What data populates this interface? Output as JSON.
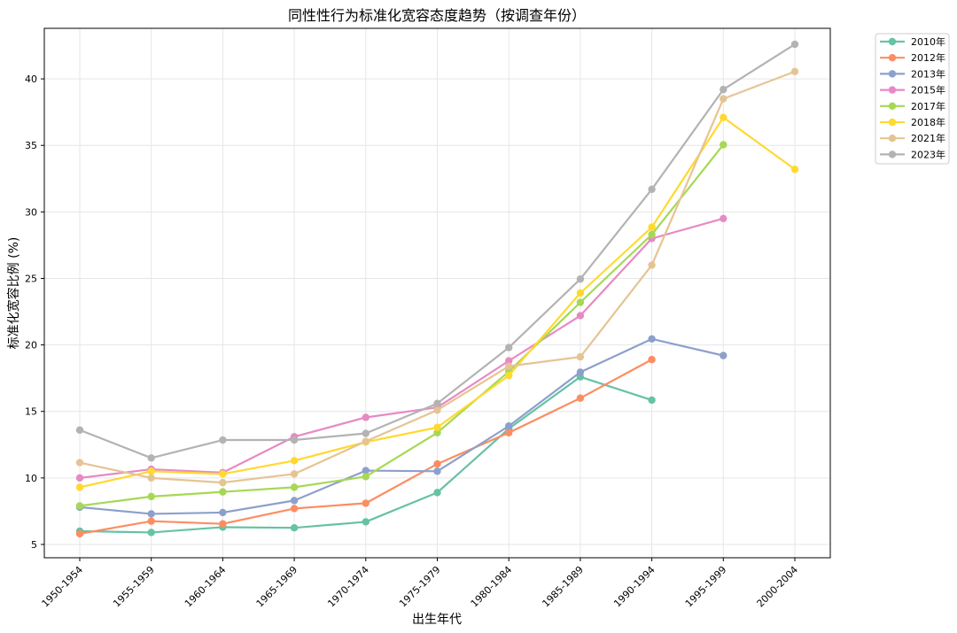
{
  "chart_data": {
    "type": "line",
    "title": "同性性行为标准化宽容态度趋势（按调查年份）",
    "xlabel": "出生年代",
    "ylabel": "标准化宽容比例 (%)",
    "categories": [
      "1950-1954",
      "1955-1959",
      "1960-1964",
      "1965-1969",
      "1970-1974",
      "1975-1979",
      "1980-1984",
      "1985-1989",
      "1990-1994",
      "1995-1999",
      "2000-2004"
    ],
    "ylim": [
      4.0,
      43.8
    ],
    "yticks": [
      5,
      10,
      15,
      20,
      25,
      30,
      35,
      40
    ],
    "grid": true,
    "legend_position": "outside-top-right",
    "series": [
      {
        "name": "2010年",
        "color": "#66c2a5",
        "values": [
          6.0,
          5.9,
          6.3,
          6.25,
          6.7,
          8.9,
          13.7,
          17.6,
          15.85,
          null,
          null
        ]
      },
      {
        "name": "2012年",
        "color": "#fc8d62",
        "values": [
          5.8,
          6.75,
          6.55,
          7.7,
          8.1,
          11.05,
          13.4,
          16.0,
          18.9,
          null,
          null
        ]
      },
      {
        "name": "2013年",
        "color": "#8da0cb",
        "values": [
          7.8,
          7.3,
          7.4,
          8.3,
          10.55,
          10.5,
          13.9,
          17.95,
          20.45,
          19.2,
          null
        ]
      },
      {
        "name": "2015年",
        "color": "#e78ac3",
        "values": [
          10.0,
          10.65,
          10.4,
          13.1,
          14.55,
          15.3,
          18.8,
          22.2,
          28.0,
          29.5,
          null
        ]
      },
      {
        "name": "2017年",
        "color": "#a6d854",
        "values": [
          7.9,
          8.6,
          8.95,
          9.3,
          10.1,
          13.4,
          18.0,
          23.2,
          28.3,
          35.05,
          null
        ]
      },
      {
        "name": "2018年",
        "color": "#ffd92f",
        "values": [
          9.3,
          10.5,
          10.3,
          11.3,
          12.7,
          13.8,
          17.7,
          23.9,
          28.85,
          37.1,
          33.2
        ]
      },
      {
        "name": "2021年",
        "color": "#e5c494",
        "values": [
          11.15,
          10.0,
          9.65,
          10.3,
          12.75,
          15.1,
          18.4,
          19.1,
          26.0,
          38.5,
          40.55
        ]
      },
      {
        "name": "2023年",
        "color": "#b3b3b3",
        "values": [
          13.6,
          11.5,
          12.85,
          12.85,
          13.35,
          15.6,
          19.8,
          24.95,
          31.7,
          39.2,
          42.6
        ]
      }
    ]
  }
}
